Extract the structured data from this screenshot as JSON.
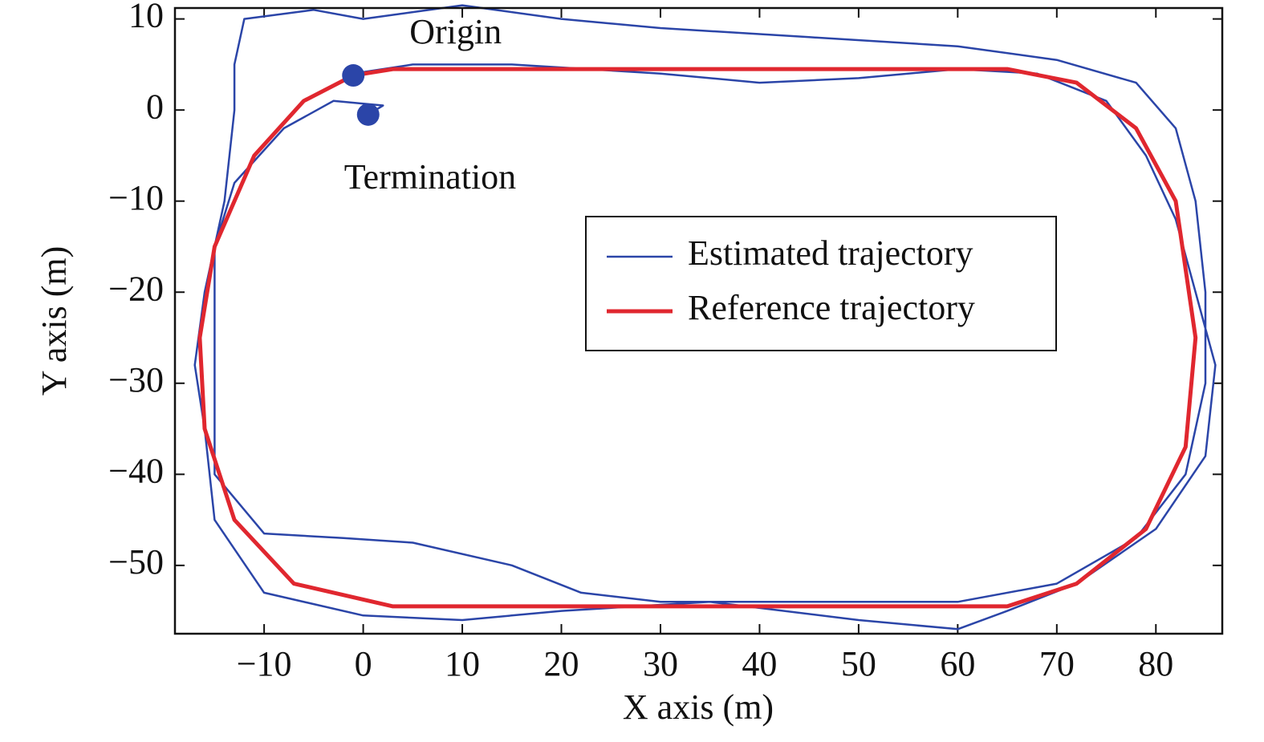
{
  "chart_data": {
    "type": "line",
    "xlabel": "X axis (m)",
    "ylabel": "Y axis (m)",
    "xlim": [
      -19,
      86.7
    ],
    "ylim": [
      -57.5,
      11.2
    ],
    "xticks": [
      {
        "value": -10,
        "label": "−10"
      },
      0,
      10,
      20,
      30,
      40,
      50,
      60,
      70,
      80
    ],
    "yticks": [
      10,
      0,
      {
        "value": -10,
        "label": "−10"
      },
      {
        "value": -20,
        "label": "−20"
      },
      {
        "value": -30,
        "label": "−30"
      },
      {
        "value": -40,
        "label": "−40"
      },
      {
        "value": -50,
        "label": "−50"
      }
    ],
    "legend": "upper right",
    "series": [
      {
        "name": "Estimated trajectory",
        "color": "#2b45a8",
        "x": [
          -1,
          5,
          15,
          30,
          40,
          50,
          60,
          68,
          75,
          79,
          82,
          84,
          86,
          85,
          80,
          72,
          65,
          60,
          50,
          35,
          20,
          10,
          0,
          -10,
          -15,
          -16,
          -17,
          -16,
          -14,
          -13,
          -13,
          -12,
          -5,
          0,
          10,
          20,
          30,
          45,
          60,
          70,
          78,
          82,
          84,
          85,
          85,
          83,
          78,
          70,
          60,
          45,
          30,
          22,
          15,
          5,
          -2,
          -10,
          -15,
          -15,
          -15,
          -13,
          -8,
          -3,
          2,
          0.5
        ],
        "y": [
          4,
          5,
          5,
          4,
          3,
          3.5,
          4.5,
          4,
          1,
          -5,
          -12,
          -20,
          -28,
          -38,
          -46,
          -52,
          -55,
          -57,
          -56,
          -54,
          -55,
          -56,
          -55.5,
          -53,
          -45,
          -35,
          -28,
          -20,
          -10,
          0,
          5,
          10,
          11,
          10,
          11.5,
          10,
          9,
          8,
          7,
          5.5,
          3,
          -2,
          -10,
          -20,
          -30,
          -40,
          -47,
          -52,
          -54,
          -54,
          -54,
          -53,
          -50,
          -47.5,
          -47,
          -46.5,
          -40,
          -30,
          -15,
          -8,
          -2,
          1,
          0.5,
          -0.5
        ]
      },
      {
        "name": "Reference trajectory",
        "color": "#e0272f",
        "x": [
          -1,
          3,
          65,
          72,
          78,
          82,
          84,
          83,
          79,
          72,
          65,
          3,
          -7,
          -13,
          -16,
          -16.5,
          -15,
          -11,
          -6,
          -1
        ],
        "y": [
          3.8,
          4.5,
          4.5,
          3,
          -2,
          -10,
          -25,
          -37,
          -46,
          -52,
          -54.5,
          -54.5,
          -52,
          -45,
          -35,
          -25,
          -15,
          -5,
          1,
          3.8
        ]
      }
    ],
    "points": [
      {
        "label": "Origin",
        "x": -1,
        "y": 3.8,
        "color": "#2b45a8"
      },
      {
        "label": "Termination",
        "x": 0.5,
        "y": -0.5,
        "color": "#2b45a8"
      }
    ]
  }
}
